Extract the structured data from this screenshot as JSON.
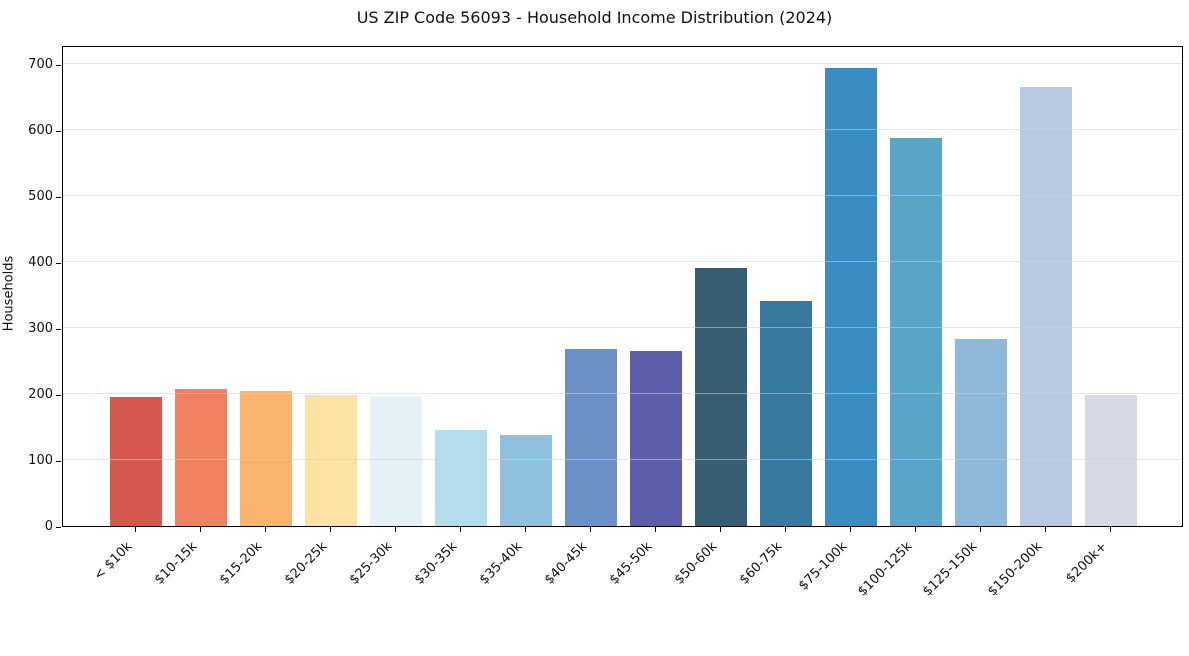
{
  "chart_data": {
    "type": "bar",
    "title": "US ZIP Code 56093 - Household Income Distribution (2024)",
    "xlabel": "",
    "ylabel": "Households",
    "categories": [
      "< $10k",
      "$10-15k",
      "$15-20k",
      "$20-25k",
      "$25-30k",
      "$30-35k",
      "$35-40k",
      "$40-45k",
      "$45-50k",
      "$50-60k",
      "$60-75k",
      "$75-100k",
      "$100-125k",
      "$125-150k",
      "$150-200k",
      "$200k+"
    ],
    "values": [
      196,
      208,
      204,
      199,
      196,
      145,
      138,
      269,
      266,
      391,
      341,
      694,
      588,
      283,
      665,
      198
    ],
    "bar_colors": [
      "#d6574d",
      "#f08261",
      "#f9b36d",
      "#fce3a3",
      "#e4f2f7",
      "#b5dcec",
      "#8fc0dd",
      "#6b90c6",
      "#5c5dab",
      "#365d72",
      "#38799e",
      "#398dc3",
      "#58a5c8",
      "#90b8d8",
      "#b9c9e2",
      "#d9d9e6"
    ],
    "yticks": [
      0,
      100,
      200,
      300,
      400,
      500,
      600,
      700
    ],
    "ylim": [
      0,
      729
    ],
    "grid": "horizontal-only",
    "legend": "none",
    "background_color": "#ffffff",
    "gridline_color": "#e4e4ea",
    "axis_color": "#000000"
  }
}
